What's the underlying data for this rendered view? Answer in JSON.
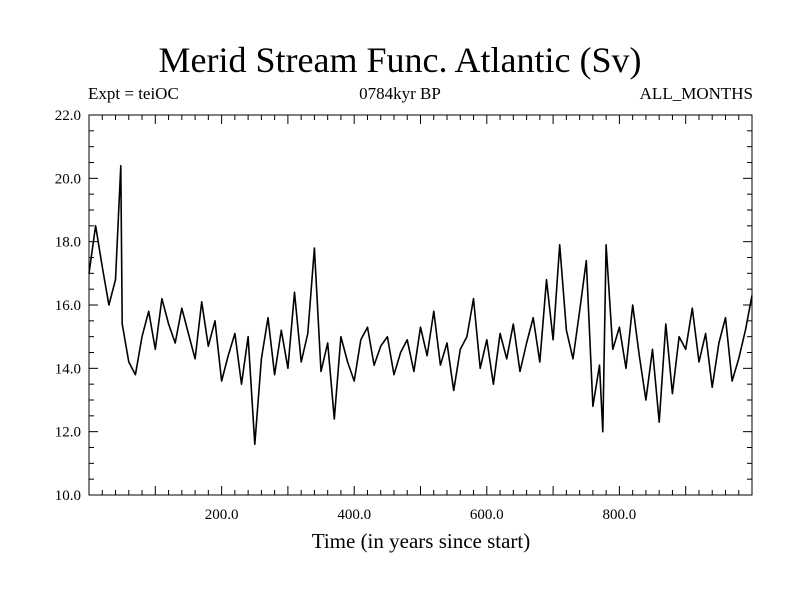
{
  "chart_data": {
    "type": "line",
    "title": "Merid Stream Func. Atlantic (Sv)",
    "subtitle_left": "Expt = teiOC",
    "subtitle_center": "0784kyr BP",
    "subtitle_right": "ALL_MONTHS",
    "xlabel": "Time (in years since start)",
    "ylabel": "",
    "xlim": [
      0,
      1000
    ],
    "ylim": [
      10.0,
      22.0
    ],
    "x_ticks": [
      200.0,
      400.0,
      600.0,
      800.0
    ],
    "x_tick_labels": [
      "200.0",
      "400.0",
      "600.0",
      "800.0"
    ],
    "y_ticks": [
      10.0,
      12.0,
      14.0,
      16.0,
      18.0,
      20.0,
      22.0
    ],
    "y_tick_labels": [
      "10.0",
      "12.0",
      "14.0",
      "16.0",
      "18.0",
      "20.0",
      "22.0"
    ],
    "grid": false,
    "line_color": "#000000",
    "series": [
      {
        "x": [
          0,
          10,
          20,
          30,
          40,
          48,
          50,
          60,
          70,
          80,
          90,
          100,
          110,
          120,
          130,
          140,
          150,
          160,
          170,
          180,
          190,
          200,
          210,
          220,
          230,
          240,
          250,
          260,
          270,
          280,
          290,
          300,
          310,
          320,
          330,
          340,
          350,
          360,
          370,
          380,
          390,
          400,
          410,
          420,
          430,
          440,
          450,
          460,
          470,
          480,
          490,
          500,
          510,
          520,
          530,
          540,
          550,
          560,
          570,
          580,
          590,
          600,
          610,
          620,
          630,
          640,
          650,
          660,
          670,
          680,
          690,
          700,
          710,
          720,
          730,
          740,
          750,
          760,
          770,
          775,
          780,
          790,
          800,
          810,
          820,
          830,
          840,
          850,
          860,
          870,
          880,
          890,
          900,
          910,
          920,
          930,
          940,
          950,
          960,
          970,
          980,
          990,
          1000
        ],
        "y": [
          17.0,
          18.5,
          17.2,
          16.0,
          16.8,
          20.4,
          15.4,
          14.2,
          13.8,
          15.0,
          15.8,
          14.6,
          16.2,
          15.4,
          14.8,
          15.9,
          15.1,
          14.3,
          16.1,
          14.7,
          15.5,
          13.6,
          14.4,
          15.1,
          13.5,
          15.0,
          11.6,
          14.3,
          15.6,
          13.8,
          15.2,
          14.0,
          16.4,
          14.2,
          15.1,
          17.8,
          13.9,
          14.8,
          12.4,
          15.0,
          14.2,
          13.6,
          14.9,
          15.3,
          14.1,
          14.7,
          15.0,
          13.8,
          14.5,
          14.9,
          13.9,
          15.3,
          14.4,
          15.8,
          14.1,
          14.8,
          13.3,
          14.6,
          15.0,
          16.2,
          14.0,
          14.9,
          13.5,
          15.1,
          14.3,
          15.4,
          13.9,
          14.8,
          15.6,
          14.2,
          16.8,
          14.9,
          17.9,
          15.2,
          14.3,
          15.8,
          17.4,
          12.8,
          14.1,
          12.0,
          17.9,
          14.6,
          15.3,
          14.0,
          16.0,
          14.4,
          13.0,
          14.6,
          12.3,
          15.4,
          13.2,
          15.0,
          14.6,
          15.9,
          14.2,
          15.1,
          13.4,
          14.8,
          15.6,
          13.6,
          14.3,
          15.2,
          16.3
        ]
      }
    ]
  }
}
